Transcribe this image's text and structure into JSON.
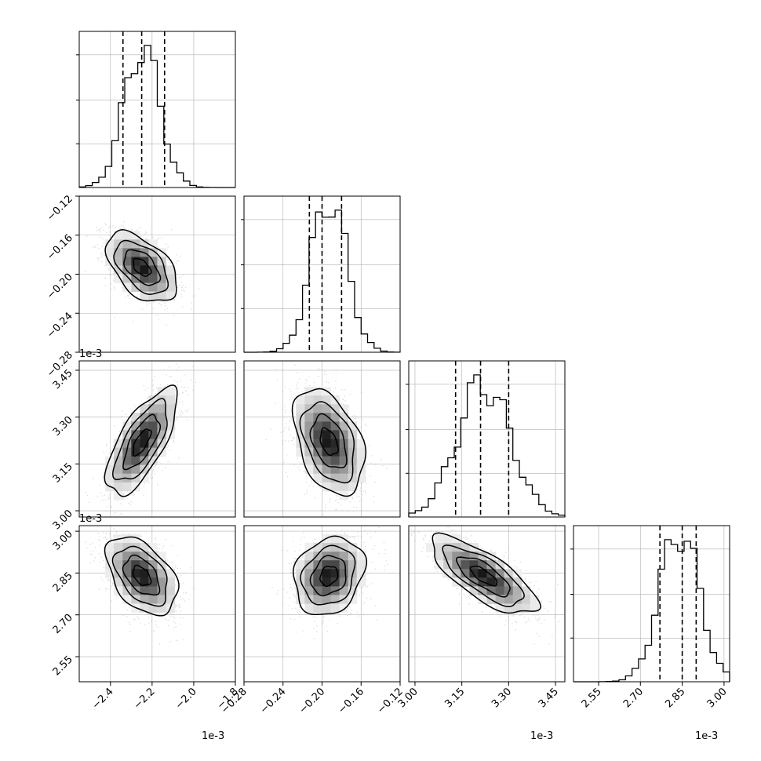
{
  "chart_data": {
    "type": "corner",
    "colors": {
      "line": "#000000",
      "grid": "#b0b0b0",
      "scatter": "#9a9a9a"
    },
    "grid": true,
    "parameters": [
      {
        "index": 0,
        "mean": -2.25,
        "sd": 0.085,
        "range": [
          -2.55,
          -1.8
        ],
        "scale_label": "1e-3",
        "ticks": [
          -2.4,
          -2.2,
          -2.0,
          -1.8
        ],
        "tick_labels": [
          "−2.4",
          "−2.2",
          "−2.0",
          "−1.8"
        ],
        "quantiles": [
          -2.34,
          -2.25,
          -2.14
        ]
      },
      {
        "index": 1,
        "mean": -0.193,
        "sd": 0.018,
        "range": [
          -0.28,
          -0.12
        ],
        "scale_label": "",
        "ticks": [
          -0.28,
          -0.24,
          -0.2,
          -0.16,
          -0.12
        ],
        "tick_labels": [
          "−0.28",
          "−0.24",
          "−0.20",
          "−0.16",
          "−0.12"
        ],
        "quantiles": [
          -0.213,
          -0.2,
          -0.18
        ]
      },
      {
        "index": 2,
        "mean": 3.22,
        "sd": 0.085,
        "range": [
          2.98,
          3.48
        ],
        "scale_label": "1e-3",
        "ticks": [
          3.0,
          3.15,
          3.3,
          3.45
        ],
        "tick_labels": [
          "3.00",
          "3.15",
          "3.30",
          "3.45"
        ],
        "quantiles": [
          3.13,
          3.21,
          3.3
        ]
      },
      {
        "index": 3,
        "mean": 2.84,
        "sd": 0.07,
        "range": [
          2.46,
          3.02
        ],
        "scale_label": "1e-3",
        "ticks": [
          2.55,
          2.7,
          2.85,
          3.0
        ],
        "tick_labels": [
          "2.55",
          "2.70",
          "2.85",
          "3.00"
        ],
        "quantiles": [
          2.77,
          2.85,
          2.9
        ]
      }
    ],
    "correlations": {
      "1-0": -0.5,
      "2-0": 0.7,
      "2-1": -0.4,
      "3-0": -0.45,
      "3-1": 0.2,
      "3-2": -0.75
    },
    "scale_labels_shown": {
      "row1_y": "1e-3",
      "row2_y": "1e-3",
      "x0": "1e-3",
      "x2": "1e-3",
      "x3": "1e-3"
    }
  }
}
